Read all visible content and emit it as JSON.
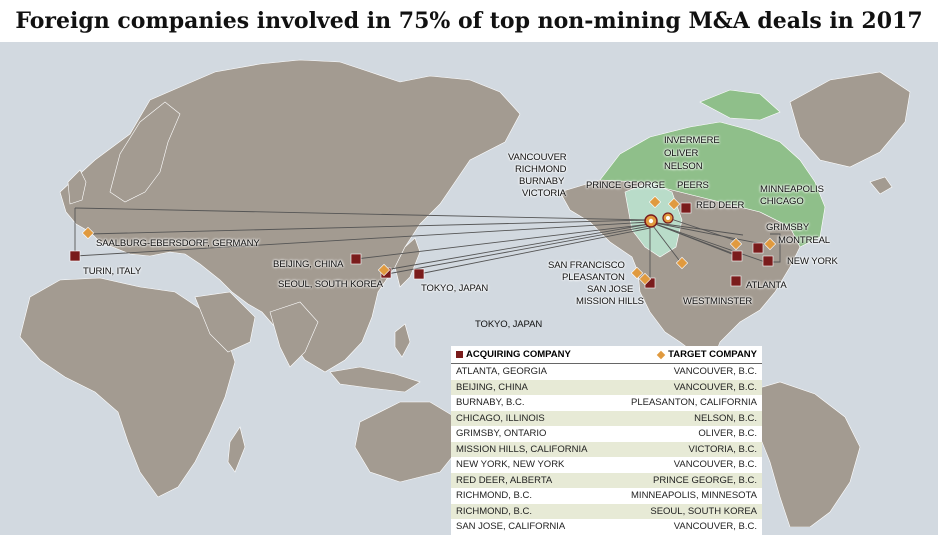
{
  "title": "Foreign companies involved in 75% of top non-mining M&A deals in 2017",
  "colors": {
    "ocean": "#d2d9e0",
    "land": "#a39b91",
    "canada": "#8fbf8a",
    "bc_highlight": "#b9dcc9",
    "acquiring": "#7a1c1c",
    "target": "#e09a3f",
    "line": "#555555"
  },
  "legend": {
    "acquiring": "ACQUIRING COMPANY",
    "target": "TARGET COMPANY"
  },
  "map_labels": {
    "vancouver_group": [
      "VANCOUVER",
      "RICHMOND",
      "BURNABY",
      "VICTORIA"
    ],
    "invermere_group": [
      "INVERMERE",
      "OLIVER",
      "NELSON"
    ],
    "prince_george": "PRINCE GEORGE",
    "peers": "PEERS",
    "red_deer": "RED DEER",
    "minneapolis_chicago": [
      "MINNEAPOLIS",
      "CHICAGO"
    ],
    "grimsby": "GRIMSBY",
    "montreal": "MONTREAL",
    "new_york": "NEW YORK",
    "atlanta": "ATLANTA",
    "westminster": "WESTMINSTER",
    "sf_group": [
      "SAN FRANCISCO",
      "PLEASANTON",
      "SAN JOSE",
      "MISSION HILLS"
    ],
    "saalburg": "SAALBURG-EBERSDORF, GERMANY",
    "turin": "TURIN, ITALY",
    "beijing": "BEIJING, CHINA",
    "seoul": "SEOUL, SOUTH KOREA",
    "tokyo": "TOKYO, JAPAN",
    "tokyo_extra": "TOKYO, JAPAN"
  },
  "table": {
    "rows": [
      {
        "acquiring": "ATLANTA, GEORGIA",
        "target": "VANCOUVER, B.C."
      },
      {
        "acquiring": "BEIJING, CHINA",
        "target": "VANCOUVER, B.C."
      },
      {
        "acquiring": "BURNABY, B.C.",
        "target": "PLEASANTON, CALIFORNIA"
      },
      {
        "acquiring": "CHICAGO, ILLINOIS",
        "target": "NELSON, B.C."
      },
      {
        "acquiring": "GRIMSBY, ONTARIO",
        "target": "OLIVER, B.C."
      },
      {
        "acquiring": "MISSION HILLS, CALIFORNIA",
        "target": "VICTORIA, B.C."
      },
      {
        "acquiring": "NEW YORK, NEW YORK",
        "target": "VANCOUVER, B.C."
      },
      {
        "acquiring": "RED DEER, ALBERTA",
        "target": "PRINCE GEORGE, B.C."
      },
      {
        "acquiring": "RICHMOND, B.C.",
        "target": "MINNEAPOLIS, MINNESOTA"
      },
      {
        "acquiring": "RICHMOND, B.C.",
        "target": "SEOUL, SOUTH KOREA"
      },
      {
        "acquiring": "SAN JOSE, CALIFORNIA",
        "target": "VANCOUVER, B.C."
      }
    ]
  }
}
